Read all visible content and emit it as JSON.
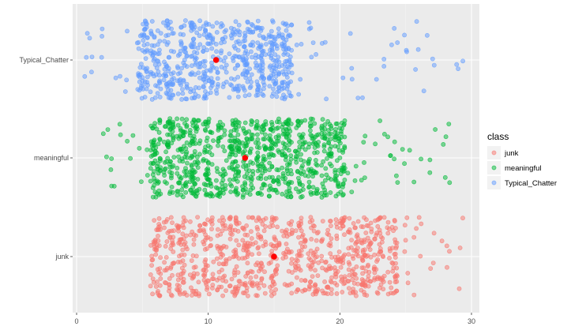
{
  "chart_data": {
    "type": "scatter",
    "x_ticks": [
      "0",
      "10",
      "20",
      "30"
    ],
    "categories": [
      "junk",
      "meaningful",
      "Typical_Chatter"
    ],
    "xlim": [
      -0.3,
      30.6
    ],
    "grid": true,
    "legend": {
      "title": "class",
      "placement": "right",
      "items": [
        {
          "label": "junk",
          "color": "#F8766D"
        },
        {
          "label": "meaningful",
          "color": "#00BA38"
        },
        {
          "label": "Typical_Chatter",
          "color": "#619CFF"
        }
      ]
    },
    "series": [
      {
        "name": "junk",
        "color": "#F8766D",
        "range": [
          6,
          29
        ],
        "dense_range": [
          6,
          24
        ],
        "count": 900,
        "mean": 15
      },
      {
        "name": "meaningful",
        "color": "#00BA38",
        "range": [
          2,
          28
        ],
        "dense_range": [
          6,
          20
        ],
        "count": 950,
        "mean": 12.8
      },
      {
        "name": "Typical_Chatter",
        "color": "#619CFF",
        "range": [
          1,
          29
        ],
        "dense_range": [
          5,
          16
        ],
        "count": 700,
        "mean": 10.6
      }
    ],
    "mean_marker_color": "#FF0000"
  }
}
